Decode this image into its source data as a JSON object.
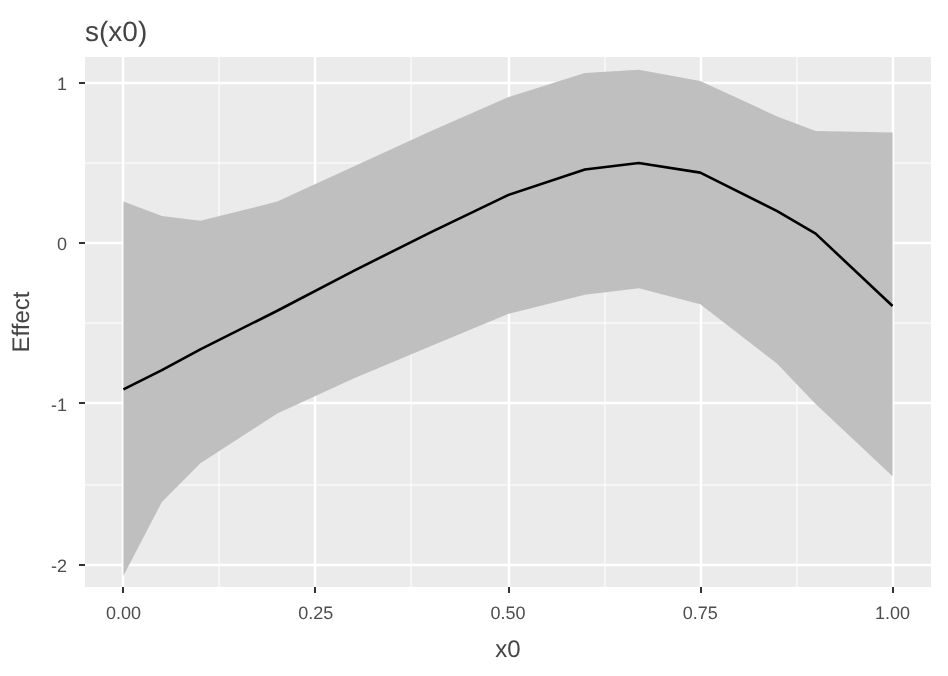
{
  "chart_data": {
    "type": "line",
    "title": "s(x0)",
    "xlabel": "x0",
    "ylabel": "Effect",
    "x": [
      0,
      0.05,
      0.1,
      0.2,
      0.3,
      0.4,
      0.5,
      0.6,
      0.67,
      0.75,
      0.85,
      0.9,
      1.0
    ],
    "series": [
      {
        "color": "#000000",
        "values": [
          -0.91,
          -0.79,
          -0.66,
          -0.42,
          -0.17,
          0.07,
          0.3,
          0.46,
          0.5,
          0.44,
          0.2,
          0.06,
          -0.39
        ],
        "lower": [
          -2.07,
          -1.61,
          -1.37,
          -1.06,
          -0.84,
          -0.64,
          -0.44,
          -0.32,
          -0.28,
          -0.38,
          -0.75,
          -1.0,
          -1.45
        ],
        "upper": [
          0.26,
          0.17,
          0.14,
          0.26,
          0.48,
          0.7,
          0.91,
          1.06,
          1.08,
          1.01,
          0.79,
          0.7,
          0.69
        ]
      }
    ],
    "xlim": [
      -0.05,
      1.05
    ],
    "ylim": [
      -2.14,
      1.16
    ],
    "xticks": [
      {
        "value": 0,
        "label": "0.00"
      },
      {
        "value": 0.25,
        "label": "0.25"
      },
      {
        "value": 0.5,
        "label": "0.50"
      },
      {
        "value": 0.75,
        "label": "0.75"
      },
      {
        "value": 1,
        "label": "1.00"
      }
    ],
    "yticks": [
      -2,
      -1,
      0,
      1
    ],
    "grid": true,
    "line_style": "solid"
  }
}
